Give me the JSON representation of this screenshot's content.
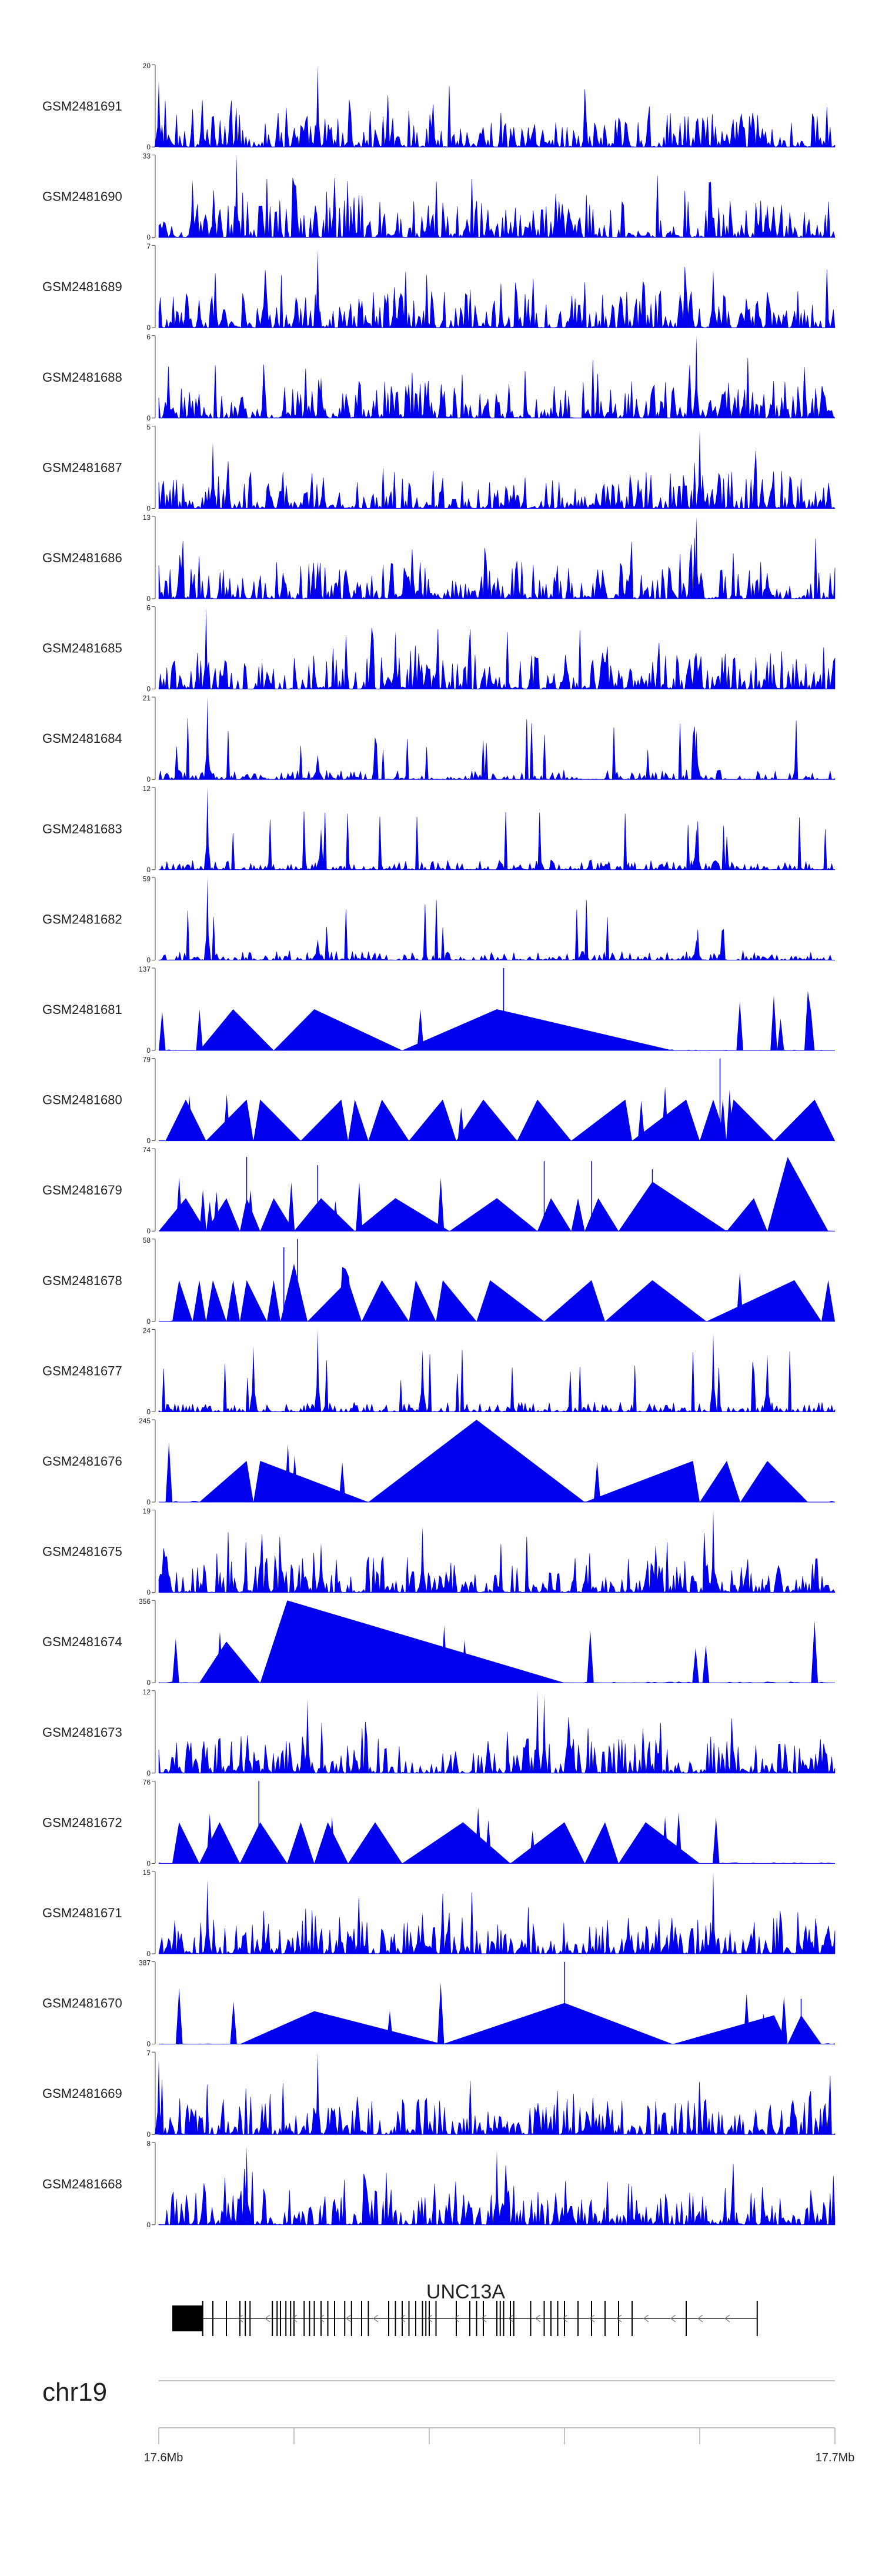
{
  "chart_data": {
    "type": "area",
    "title": "",
    "color": "#0000ee",
    "x_range_mb": [
      17.6,
      17.7
    ],
    "tracks": [
      {
        "name": "GSM2481691",
        "max": "20",
        "style": "dense",
        "peaks": [
          [
            0.0,
            0.8
          ],
          [
            0.235,
            1.0
          ],
          [
            0.85,
            0.2
          ]
        ]
      },
      {
        "name": "GSM2481690",
        "max": "33",
        "style": "dense",
        "peaks": [
          [
            0.115,
            1.0
          ],
          [
            0.05,
            0.7
          ],
          [
            0.9,
            0.4
          ]
        ]
      },
      {
        "name": "GSM2481689",
        "max": "7",
        "style": "dense",
        "peaks": [
          [
            0.235,
            0.95
          ],
          [
            0.82,
            0.7
          ]
        ]
      },
      {
        "name": "GSM2481688",
        "max": "6",
        "style": "dense",
        "peaks": [
          [
            0.795,
            1.0
          ],
          [
            0.24,
            0.5
          ]
        ]
      },
      {
        "name": "GSM2481687",
        "max": "5",
        "style": "dense",
        "peaks": [
          [
            0.8,
            0.95
          ],
          [
            0.08,
            0.8
          ]
        ]
      },
      {
        "name": "GSM2481686",
        "max": "13",
        "style": "dense",
        "peaks": [
          [
            0.795,
            1.0
          ],
          [
            0.235,
            0.45
          ]
        ]
      },
      {
        "name": "GSM2481685",
        "max": "6",
        "style": "dense",
        "peaks": [
          [
            0.07,
            1.0
          ],
          [
            0.35,
            0.7
          ]
        ]
      },
      {
        "name": "GSM2481684",
        "max": "21",
        "style": "peaky",
        "peaks": [
          [
            0.072,
            1.0
          ],
          [
            0.795,
            0.6
          ],
          [
            0.235,
            0.3
          ]
        ]
      },
      {
        "name": "GSM2481683",
        "max": "12",
        "style": "peaky",
        "peaks": [
          [
            0.072,
            1.0
          ],
          [
            0.24,
            0.5
          ],
          [
            0.795,
            0.5
          ]
        ]
      },
      {
        "name": "GSM2481682",
        "max": "59",
        "style": "peaky",
        "peaks": [
          [
            0.072,
            1.0
          ],
          [
            0.235,
            0.25
          ],
          [
            0.795,
            0.25
          ]
        ]
      },
      {
        "name": "GSM2481681",
        "max": "137",
        "style": "tri",
        "tris": [
          [
            0.06,
            0.11,
            0.17,
            0.5
          ],
          [
            0.17,
            0.23,
            0.36,
            0.5
          ],
          [
            0.36,
            0.5,
            0.76,
            0.5
          ]
        ],
        "spikes": [
          [
            0.51,
            1.0
          ]
        ]
      },
      {
        "name": "GSM2481680",
        "max": "79",
        "style": "tri",
        "tris": [
          [
            0.01,
            0.04,
            0.07,
            0.5
          ],
          [
            0.07,
            0.13,
            0.14,
            0.5
          ],
          [
            0.14,
            0.15,
            0.21,
            0.5
          ],
          [
            0.21,
            0.27,
            0.28,
            0.5
          ],
          [
            0.28,
            0.29,
            0.31,
            0.5
          ],
          [
            0.31,
            0.33,
            0.37,
            0.5
          ],
          [
            0.37,
            0.42,
            0.44,
            0.5
          ],
          [
            0.44,
            0.48,
            0.53,
            0.5
          ],
          [
            0.53,
            0.56,
            0.61,
            0.5
          ],
          [
            0.61,
            0.69,
            0.7,
            0.5
          ],
          [
            0.7,
            0.78,
            0.8,
            0.5
          ],
          [
            0.8,
            0.82,
            0.84,
            0.5
          ],
          [
            0.84,
            0.85,
            0.91,
            0.5
          ],
          [
            0.91,
            0.97,
            1.0,
            0.5
          ]
        ],
        "spikes": [
          [
            0.83,
            1.0
          ]
        ]
      },
      {
        "name": "GSM2481679",
        "max": "74",
        "style": "tri",
        "tris": [
          [
            0.0,
            0.04,
            0.07,
            0.4
          ],
          [
            0.07,
            0.1,
            0.12,
            0.4
          ],
          [
            0.12,
            0.13,
            0.15,
            0.4
          ],
          [
            0.15,
            0.17,
            0.2,
            0.4
          ],
          [
            0.2,
            0.24,
            0.29,
            0.4
          ],
          [
            0.29,
            0.35,
            0.43,
            0.4
          ],
          [
            0.43,
            0.5,
            0.56,
            0.4
          ],
          [
            0.56,
            0.58,
            0.61,
            0.4
          ],
          [
            0.61,
            0.62,
            0.63,
            0.4
          ],
          [
            0.63,
            0.65,
            0.68,
            0.4
          ],
          [
            0.68,
            0.73,
            0.84,
            0.6
          ],
          [
            0.84,
            0.88,
            0.9,
            0.4
          ],
          [
            0.9,
            0.93,
            0.99,
            0.9
          ]
        ],
        "spikes": [
          [
            0.13,
            0.9
          ],
          [
            0.235,
            0.8
          ],
          [
            0.57,
            0.85
          ],
          [
            0.64,
            0.85
          ],
          [
            0.73,
            0.75
          ]
        ]
      },
      {
        "name": "GSM2481678",
        "max": "58",
        "style": "tri",
        "tris": [
          [
            0.02,
            0.03,
            0.05,
            0.5
          ],
          [
            0.05,
            0.06,
            0.07,
            0.5
          ],
          [
            0.07,
            0.08,
            0.1,
            0.5
          ],
          [
            0.1,
            0.11,
            0.12,
            0.5
          ],
          [
            0.12,
            0.13,
            0.16,
            0.5
          ],
          [
            0.16,
            0.17,
            0.18,
            0.5
          ],
          [
            0.18,
            0.2,
            0.22,
            0.7
          ],
          [
            0.22,
            0.28,
            0.3,
            0.5
          ],
          [
            0.3,
            0.33,
            0.37,
            0.5
          ],
          [
            0.37,
            0.38,
            0.41,
            0.5
          ],
          [
            0.41,
            0.42,
            0.47,
            0.5
          ],
          [
            0.47,
            0.49,
            0.57,
            0.5
          ],
          [
            0.57,
            0.64,
            0.66,
            0.5
          ],
          [
            0.66,
            0.73,
            0.81,
            0.5
          ],
          [
            0.81,
            0.94,
            0.98,
            0.5
          ],
          [
            0.98,
            0.99,
            1.0,
            0.5
          ]
        ],
        "spikes": [
          [
            0.205,
            1.0
          ],
          [
            0.185,
            0.9
          ]
        ]
      },
      {
        "name": "GSM2481677",
        "max": "24",
        "style": "peaky",
        "peaks": [
          [
            0.235,
            1.0
          ],
          [
            0.82,
            0.95
          ],
          [
            0.14,
            0.8
          ],
          [
            0.39,
            0.75
          ],
          [
            0.9,
            0.7
          ]
        ]
      },
      {
        "name": "GSM2481676",
        "max": "245",
        "style": "tri",
        "tris": [
          [
            0.06,
            0.13,
            0.14,
            0.5
          ],
          [
            0.14,
            0.15,
            0.31,
            0.5
          ],
          [
            0.31,
            0.47,
            0.63,
            1.0
          ],
          [
            0.63,
            0.79,
            0.8,
            0.5
          ],
          [
            0.8,
            0.84,
            0.86,
            0.5
          ],
          [
            0.86,
            0.9,
            0.96,
            0.5
          ]
        ],
        "spikes": []
      },
      {
        "name": "GSM2481675",
        "max": "19",
        "style": "dense",
        "peaks": [
          [
            0.82,
            1.0
          ],
          [
            0.39,
            0.8
          ],
          [
            0.24,
            0.6
          ]
        ]
      },
      {
        "name": "GSM2481674",
        "max": "356",
        "style": "tri",
        "tris": [
          [
            0.06,
            0.1,
            0.15,
            0.5
          ],
          [
            0.15,
            0.19,
            0.6,
            1.0
          ]
        ],
        "spikes": []
      },
      {
        "name": "GSM2481673",
        "max": "12",
        "style": "dense",
        "peaks": [
          [
            0.56,
            1.0
          ],
          [
            0.57,
            0.95
          ],
          [
            0.22,
            0.9
          ]
        ]
      },
      {
        "name": "GSM2481672",
        "max": "76",
        "style": "tri",
        "tris": [
          [
            0.02,
            0.03,
            0.06,
            0.5
          ],
          [
            0.06,
            0.09,
            0.12,
            0.5
          ],
          [
            0.12,
            0.15,
            0.19,
            0.5
          ],
          [
            0.19,
            0.21,
            0.23,
            0.5
          ],
          [
            0.23,
            0.25,
            0.28,
            0.5
          ],
          [
            0.28,
            0.32,
            0.36,
            0.5
          ],
          [
            0.36,
            0.45,
            0.52,
            0.5
          ],
          [
            0.52,
            0.6,
            0.63,
            0.5
          ],
          [
            0.63,
            0.66,
            0.68,
            0.5
          ],
          [
            0.68,
            0.72,
            0.8,
            0.5
          ],
          [
            0.8,
            0.9,
            0.9,
            0.0
          ]
        ],
        "spikes": [
          [
            0.148,
            1.0
          ]
        ]
      },
      {
        "name": "GSM2481671",
        "max": "15",
        "style": "dense",
        "peaks": [
          [
            0.82,
            1.0
          ],
          [
            0.072,
            0.9
          ],
          [
            0.39,
            0.5
          ]
        ]
      },
      {
        "name": "GSM2481670",
        "max": "387",
        "style": "tri",
        "tris": [
          [
            0.12,
            0.23,
            0.42,
            0.4
          ],
          [
            0.42,
            0.6,
            0.76,
            0.5
          ],
          [
            0.76,
            0.91,
            0.93,
            0.35
          ],
          [
            0.93,
            0.95,
            0.98,
            0.35
          ]
        ],
        "spikes": [
          [
            0.6,
            1.0
          ],
          [
            0.95,
            0.55
          ]
        ]
      },
      {
        "name": "GSM2481669",
        "max": "7",
        "style": "dense",
        "peaks": [
          [
            0.235,
            1.0
          ],
          [
            0.0,
            0.9
          ]
        ]
      },
      {
        "name": "GSM2481668",
        "max": "8",
        "style": "dense",
        "peaks": [
          [
            0.13,
            0.95
          ],
          [
            0.5,
            0.9
          ]
        ]
      }
    ],
    "gene": {
      "name": "UNC13A",
      "start": 0.02,
      "end": 0.885,
      "utr_box": [
        0.02,
        0.065
      ],
      "exons": [
        0.065,
        0.08,
        0.1,
        0.12,
        0.128,
        0.135,
        0.168,
        0.175,
        0.18,
        0.188,
        0.195,
        0.2,
        0.215,
        0.223,
        0.23,
        0.24,
        0.25,
        0.26,
        0.275,
        0.285,
        0.3,
        0.31,
        0.34,
        0.35,
        0.36,
        0.37,
        0.38,
        0.39,
        0.395,
        0.4,
        0.41,
        0.44,
        0.46,
        0.47,
        0.48,
        0.5,
        0.505,
        0.51,
        0.52,
        0.525,
        0.55,
        0.57,
        0.58,
        0.59,
        0.6,
        0.62,
        0.64,
        0.66,
        0.68,
        0.7,
        0.78,
        0.885
      ]
    },
    "chromosome": "chr19",
    "axis": {
      "tick_fracs": [
        0.0,
        0.2,
        0.4,
        0.6,
        0.8,
        1.0
      ],
      "left_label": "17.6Mb",
      "right_label": "17.7Mb"
    }
  }
}
